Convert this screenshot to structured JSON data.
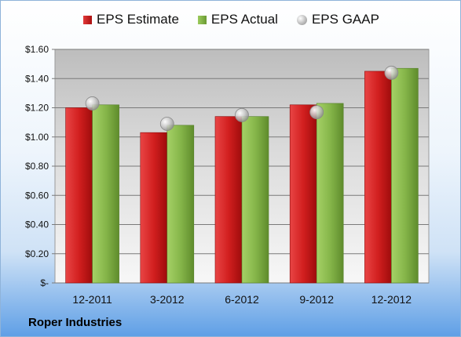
{
  "chart_data": {
    "type": "bar",
    "categories": [
      "12-2011",
      "3-2012",
      "6-2012",
      "9-2012",
      "12-2012"
    ],
    "series": [
      {
        "name": "EPS Estimate",
        "kind": "bar",
        "color": "#c41a1a",
        "values": [
          1.2,
          1.03,
          1.14,
          1.22,
          1.45
        ]
      },
      {
        "name": "EPS Actual",
        "kind": "bar",
        "color": "#7fac42",
        "values": [
          1.22,
          1.08,
          1.14,
          1.23,
          1.47
        ]
      },
      {
        "name": "EPS GAAP",
        "kind": "marker",
        "color": "#b8b8b8",
        "values": [
          1.23,
          1.09,
          1.15,
          1.17,
          1.44
        ]
      }
    ],
    "ylim": [
      0,
      1.6
    ],
    "yticks": [
      0,
      0.2,
      0.4,
      0.6,
      0.8,
      1.0,
      1.2,
      1.4,
      1.6
    ],
    "ytick_labels": [
      "$-",
      "$0.20",
      "$0.40",
      "$0.60",
      "$0.80",
      "$1.00",
      "$1.20",
      "$1.40",
      "$1.60"
    ],
    "grid": true,
    "legend_position": "top"
  },
  "legend": {
    "estimate": "EPS Estimate",
    "actual": "EPS Actual",
    "gaap": "EPS GAAP"
  },
  "footer": {
    "company": "Roper Industries"
  }
}
